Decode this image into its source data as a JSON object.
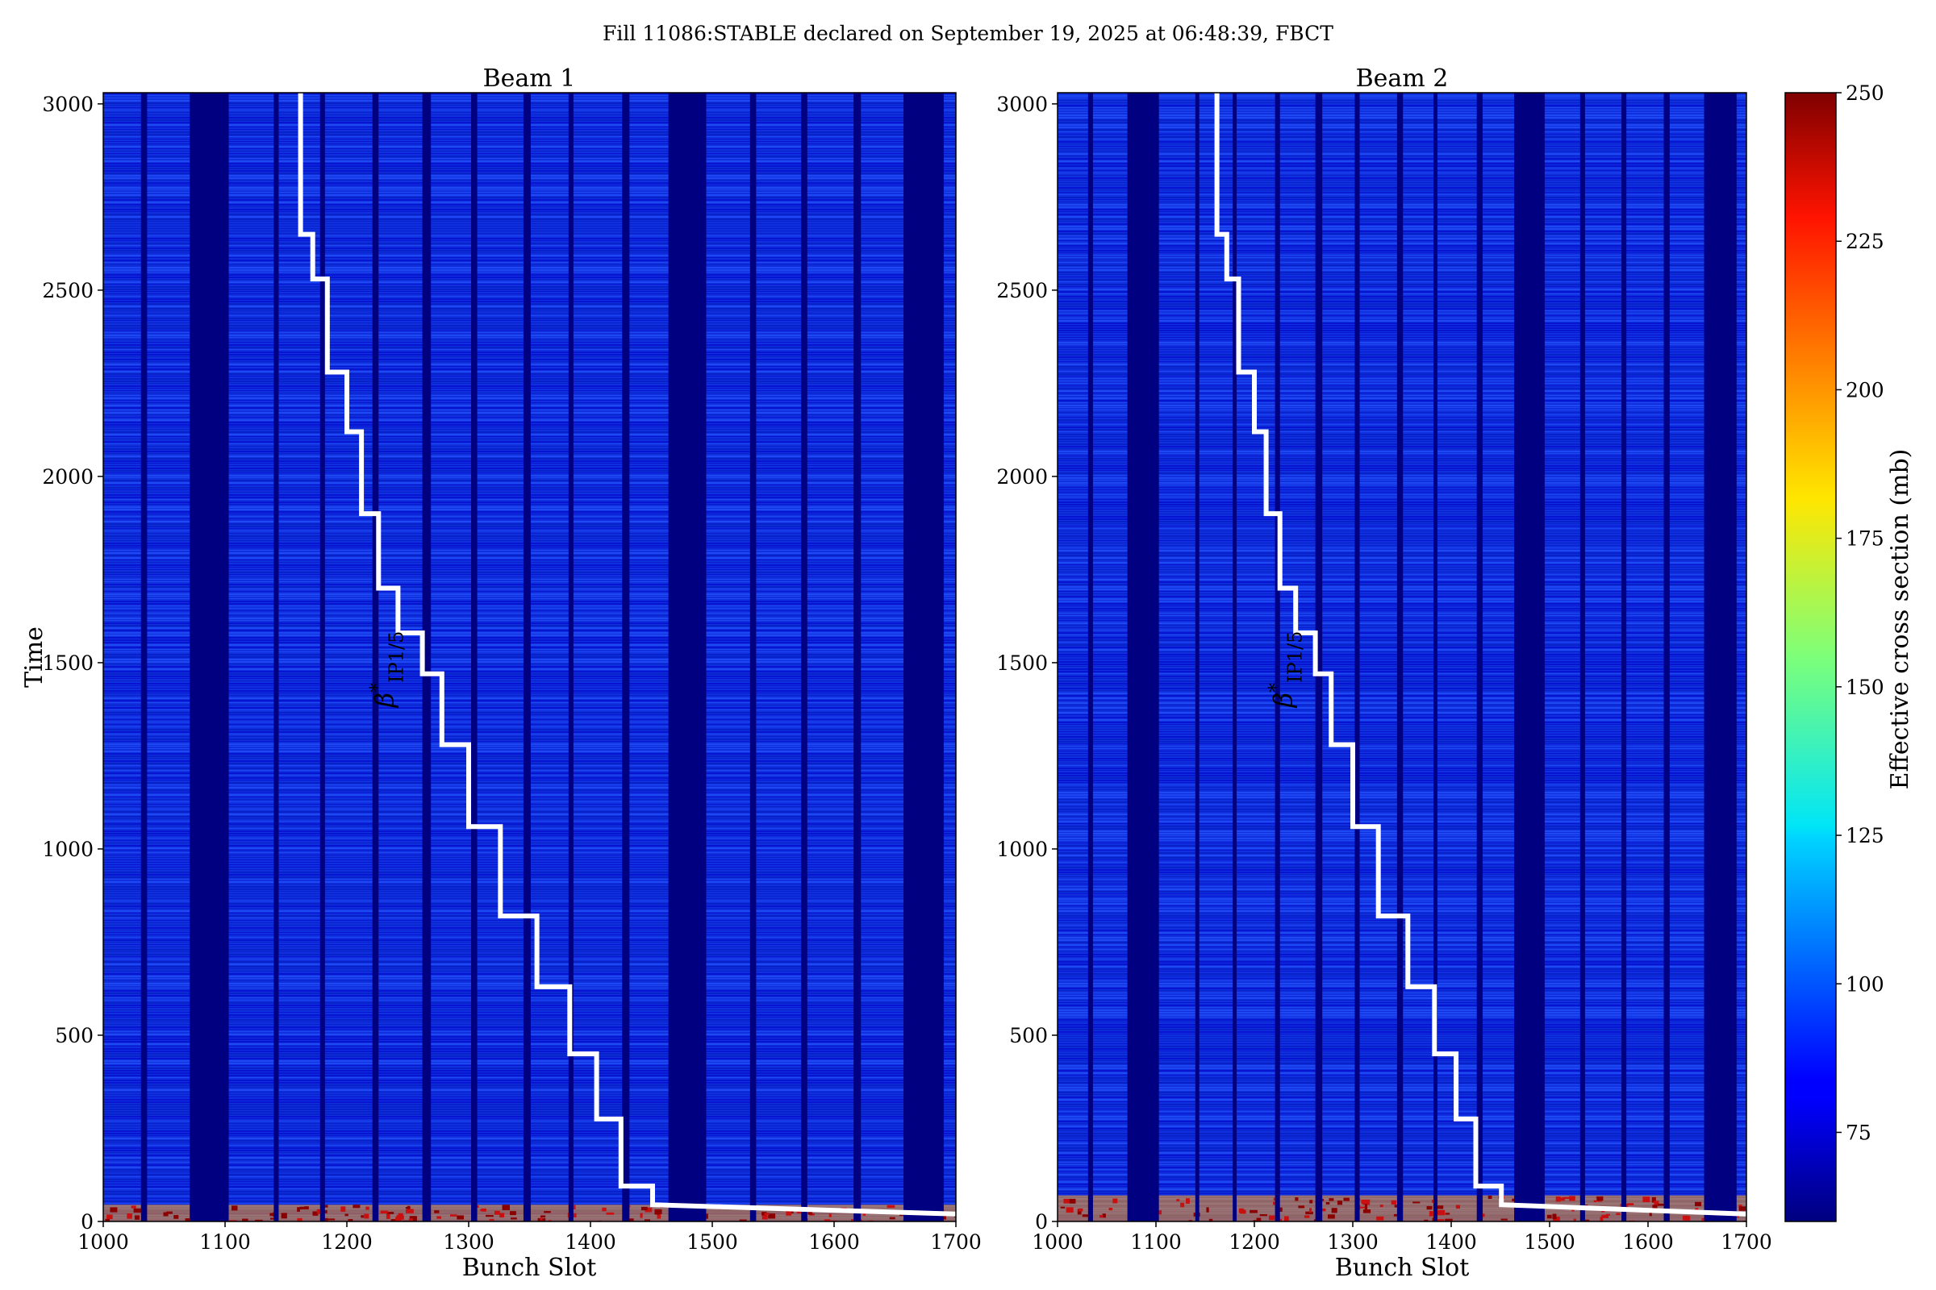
{
  "suptitle": "Fill 11086:STABLE declared on September 19, 2025 at 06:48:39, FBCT",
  "colors": {
    "background": "#0000c8",
    "train_fill": "#1030e0",
    "gap_fill": "#000080",
    "step_line": "#ffffff",
    "noise_light": "#2a5cff",
    "noise_dark": "#0018b8",
    "hot_bottom": "#c81010"
  },
  "colorbar": {
    "label": "Effective cross section (mb)",
    "min": 60,
    "max": 250,
    "ticks": [
      "75",
      "100",
      "125",
      "150",
      "175",
      "200",
      "225",
      "250"
    ],
    "colormap": "jet"
  },
  "chart_data": [
    {
      "type": "heatmap",
      "title": "Beam 1",
      "xlabel": "Bunch Slot",
      "ylabel": "Time",
      "xlim": [
        1000,
        1700
      ],
      "ylim": [
        0,
        3030
      ],
      "xticks": [
        "1000",
        "1100",
        "1200",
        "1300",
        "1400",
        "1500",
        "1600",
        "1700"
      ],
      "yticks": [
        "0",
        "500",
        "1000",
        "1500",
        "2000",
        "2500",
        "3000"
      ],
      "gaps": [
        [
          1031,
          1036
        ],
        [
          1071,
          1103
        ],
        [
          1140,
          1144
        ],
        [
          1178,
          1182
        ],
        [
          1221,
          1226
        ],
        [
          1262,
          1269
        ],
        [
          1302,
          1307
        ],
        [
          1345,
          1351
        ],
        [
          1382,
          1386
        ],
        [
          1426,
          1432
        ],
        [
          1464,
          1495
        ],
        [
          1531,
          1536
        ],
        [
          1573,
          1578
        ],
        [
          1616,
          1622
        ],
        [
          1657,
          1690
        ]
      ],
      "annotation": "β*IP1/5",
      "step_series": {
        "name": "β*IP1/5",
        "points": [
          [
            1162,
            3030
          ],
          [
            1162,
            2650
          ],
          [
            1172,
            2650
          ],
          [
            1172,
            2530
          ],
          [
            1184,
            2530
          ],
          [
            1184,
            2280
          ],
          [
            1200,
            2280
          ],
          [
            1200,
            2120
          ],
          [
            1212,
            2120
          ],
          [
            1212,
            1900
          ],
          [
            1226,
            1900
          ],
          [
            1226,
            1700
          ],
          [
            1242,
            1700
          ],
          [
            1242,
            1580
          ],
          [
            1262,
            1580
          ],
          [
            1262,
            1470
          ],
          [
            1278,
            1470
          ],
          [
            1278,
            1280
          ],
          [
            1300,
            1280
          ],
          [
            1300,
            1060
          ],
          [
            1326,
            1060
          ],
          [
            1326,
            820
          ],
          [
            1356,
            820
          ],
          [
            1356,
            630
          ],
          [
            1383,
            630
          ],
          [
            1383,
            450
          ],
          [
            1405,
            450
          ],
          [
            1405,
            275
          ],
          [
            1425,
            275
          ],
          [
            1425,
            95
          ],
          [
            1451,
            95
          ],
          [
            1451,
            45
          ],
          [
            1700,
            20
          ]
        ]
      }
    },
    {
      "type": "heatmap",
      "title": "Beam 2",
      "xlabel": "Bunch Slot",
      "ylabel": "",
      "xlim": [
        1000,
        1700
      ],
      "ylim": [
        0,
        3030
      ],
      "xticks": [
        "1000",
        "1100",
        "1200",
        "1300",
        "1400",
        "1500",
        "1600",
        "1700"
      ],
      "yticks": [
        "0",
        "500",
        "1000",
        "1500",
        "2000",
        "2500",
        "3000"
      ],
      "gaps": [
        [
          1031,
          1036
        ],
        [
          1071,
          1103
        ],
        [
          1140,
          1144
        ],
        [
          1178,
          1182
        ],
        [
          1221,
          1226
        ],
        [
          1262,
          1269
        ],
        [
          1302,
          1307
        ],
        [
          1345,
          1351
        ],
        [
          1382,
          1386
        ],
        [
          1426,
          1432
        ],
        [
          1464,
          1495
        ],
        [
          1531,
          1536
        ],
        [
          1573,
          1578
        ],
        [
          1616,
          1622
        ],
        [
          1657,
          1690
        ]
      ],
      "annotation": "β*IP1/5",
      "step_series": {
        "name": "β*IP1/5",
        "points": [
          [
            1162,
            3030
          ],
          [
            1162,
            2650
          ],
          [
            1172,
            2650
          ],
          [
            1172,
            2530
          ],
          [
            1184,
            2530
          ],
          [
            1184,
            2280
          ],
          [
            1200,
            2280
          ],
          [
            1200,
            2120
          ],
          [
            1212,
            2120
          ],
          [
            1212,
            1900
          ],
          [
            1226,
            1900
          ],
          [
            1226,
            1700
          ],
          [
            1242,
            1700
          ],
          [
            1242,
            1580
          ],
          [
            1262,
            1580
          ],
          [
            1262,
            1470
          ],
          [
            1278,
            1470
          ],
          [
            1278,
            1280
          ],
          [
            1300,
            1280
          ],
          [
            1300,
            1060
          ],
          [
            1326,
            1060
          ],
          [
            1326,
            820
          ],
          [
            1356,
            820
          ],
          [
            1356,
            630
          ],
          [
            1383,
            630
          ],
          [
            1383,
            450
          ],
          [
            1405,
            450
          ],
          [
            1405,
            275
          ],
          [
            1425,
            275
          ],
          [
            1425,
            95
          ],
          [
            1451,
            95
          ],
          [
            1451,
            45
          ],
          [
            1700,
            20
          ]
        ]
      }
    }
  ]
}
